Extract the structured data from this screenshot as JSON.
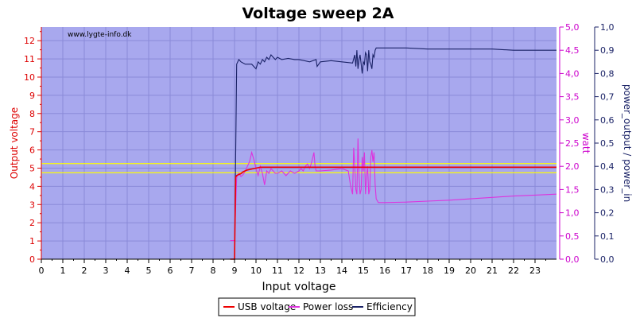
{
  "chart_data": {
    "type": "line",
    "title": "Voltage sweep 2A",
    "watermark": "www.lygte-info.dk",
    "xlabel": "Input voltage",
    "ylabel_left": "Output voltage",
    "ylabel_right1": "watt",
    "ylabel_right2": "power_output / power_in",
    "xlim": [
      0,
      24
    ],
    "ylim_left": [
      0,
      12.75
    ],
    "ylim_right1": [
      0,
      5
    ],
    "ylim_right2": [
      0,
      1
    ],
    "x_ticks": [
      "0",
      "1",
      "2",
      "3",
      "4",
      "5",
      "6",
      "7",
      "8",
      "9",
      "10",
      "11",
      "12",
      "13",
      "14",
      "15",
      "16",
      "17",
      "18",
      "19",
      "20",
      "21",
      "22",
      "23"
    ],
    "y_left_ticks": [
      "0",
      "1",
      "2",
      "3",
      "4",
      "5",
      "6",
      "7",
      "8",
      "9",
      "10",
      "11",
      "12"
    ],
    "y_right1_ticks": [
      "0,0",
      "0,5",
      "1,0",
      "1,5",
      "2,0",
      "2,5",
      "3,0",
      "3,5",
      "4,0",
      "4,5",
      "5,0"
    ],
    "y_right2_ticks": [
      "0,0",
      "0,1",
      "0,2",
      "0,3",
      "0,4",
      "0,5",
      "0,6",
      "0,7",
      "0,8",
      "0,9",
      "1,0"
    ],
    "reference_lines_left": [
      4.75,
      5.25
    ],
    "colors": {
      "plot_bg": "#a8a8ee",
      "grid": "#8a8ad8",
      "usb_voltage": "#ee0000",
      "power_loss": "#dd33dd",
      "efficiency": "#1a2266",
      "reference": "#ffff00",
      "left_axis": "#dd0000",
      "right1_axis": "#cc00cc",
      "right2_axis": "#1a2266"
    },
    "series": [
      {
        "name": "USB voltage",
        "axis": "left",
        "x": [
          8.8,
          9.0,
          9.05,
          9.1,
          9.2,
          9.3,
          9.4,
          9.5,
          9.6,
          9.8,
          10.0,
          10.2,
          10.5,
          11.0,
          12.0,
          13.0,
          14.0,
          15.0,
          16.0,
          17.0,
          18.0,
          20.0,
          22.0,
          24.0
        ],
        "y": [
          0.0,
          0.0,
          4.5,
          4.6,
          4.65,
          4.7,
          4.8,
          4.85,
          4.9,
          4.95,
          5.0,
          5.05,
          5.05,
          5.05,
          5.05,
          5.05,
          5.05,
          5.05,
          5.05,
          5.05,
          5.05,
          5.05,
          5.05,
          5.05
        ]
      },
      {
        "name": "Power loss",
        "axis": "right1",
        "x": [
          8.8,
          9.0,
          9.1,
          9.2,
          9.3,
          9.4,
          9.5,
          9.6,
          9.7,
          9.8,
          9.9,
          10.0,
          10.1,
          10.2,
          10.3,
          10.4,
          10.5,
          10.6,
          10.7,
          10.8,
          10.9,
          11.0,
          11.2,
          11.4,
          11.6,
          11.8,
          12.0,
          12.1,
          12.2,
          12.3,
          12.4,
          12.5,
          12.6,
          12.7,
          12.75,
          12.8,
          13.0,
          13.5,
          14.0,
          14.3,
          14.4,
          14.5,
          14.55,
          14.6,
          14.65,
          14.7,
          14.75,
          14.8,
          14.85,
          14.9,
          14.95,
          15.0,
          15.05,
          15.1,
          15.15,
          15.2,
          15.25,
          15.3,
          15.35,
          15.4,
          15.45,
          15.5,
          15.55,
          15.6,
          15.7,
          16.0,
          17.0,
          18.0,
          19.0,
          20.0,
          21.0,
          22.0,
          23.0,
          24.0
        ],
        "y": [
          0.4,
          0.4,
          1.75,
          1.85,
          1.78,
          1.82,
          1.9,
          2.0,
          2.1,
          2.3,
          2.15,
          1.95,
          1.8,
          2.0,
          1.85,
          1.6,
          1.9,
          1.85,
          1.95,
          1.9,
          1.85,
          1.85,
          1.9,
          1.8,
          1.9,
          1.85,
          1.9,
          1.95,
          1.9,
          2.0,
          2.05,
          1.95,
          2.1,
          2.3,
          2.0,
          1.9,
          1.9,
          1.92,
          1.95,
          1.9,
          1.6,
          1.4,
          2.4,
          2.0,
          1.5,
          1.4,
          2.6,
          1.8,
          1.4,
          1.5,
          2.2,
          1.9,
          2.3,
          1.4,
          1.8,
          2.0,
          1.4,
          1.5,
          2.2,
          2.35,
          2.1,
          2.3,
          1.6,
          1.3,
          1.22,
          1.22,
          1.23,
          1.25,
          1.27,
          1.3,
          1.33,
          1.36,
          1.38,
          1.4
        ]
      },
      {
        "name": "Efficiency",
        "axis": "right2",
        "x": [
          8.8,
          9.0,
          9.1,
          9.2,
          9.3,
          9.5,
          9.8,
          10.0,
          10.1,
          10.2,
          10.3,
          10.4,
          10.5,
          10.6,
          10.7,
          10.8,
          10.9,
          11.0,
          11.2,
          11.5,
          11.8,
          12.0,
          12.5,
          12.8,
          12.85,
          13.0,
          13.5,
          14.0,
          14.5,
          14.6,
          14.65,
          14.7,
          14.75,
          14.8,
          14.85,
          14.9,
          14.95,
          15.0,
          15.05,
          15.1,
          15.15,
          15.2,
          15.25,
          15.3,
          15.35,
          15.4,
          15.45,
          15.5,
          15.55,
          15.6,
          15.7,
          16.0,
          17.0,
          18.0,
          19.0,
          20.0,
          21.0,
          22.0,
          23.0,
          24.0
        ],
        "y": [
          0.0,
          0.0,
          0.84,
          0.86,
          0.85,
          0.84,
          0.84,
          0.82,
          0.85,
          0.84,
          0.86,
          0.85,
          0.87,
          0.86,
          0.88,
          0.87,
          0.86,
          0.87,
          0.86,
          0.865,
          0.86,
          0.86,
          0.85,
          0.86,
          0.83,
          0.85,
          0.855,
          0.85,
          0.845,
          0.88,
          0.83,
          0.9,
          0.82,
          0.86,
          0.88,
          0.84,
          0.8,
          0.85,
          0.84,
          0.89,
          0.88,
          0.81,
          0.9,
          0.85,
          0.84,
          0.82,
          0.88,
          0.87,
          0.9,
          0.91,
          0.91,
          0.91,
          0.91,
          0.905,
          0.905,
          0.905,
          0.905,
          0.9,
          0.9,
          0.9
        ]
      }
    ],
    "legend": {
      "position": "bottom-center"
    }
  }
}
